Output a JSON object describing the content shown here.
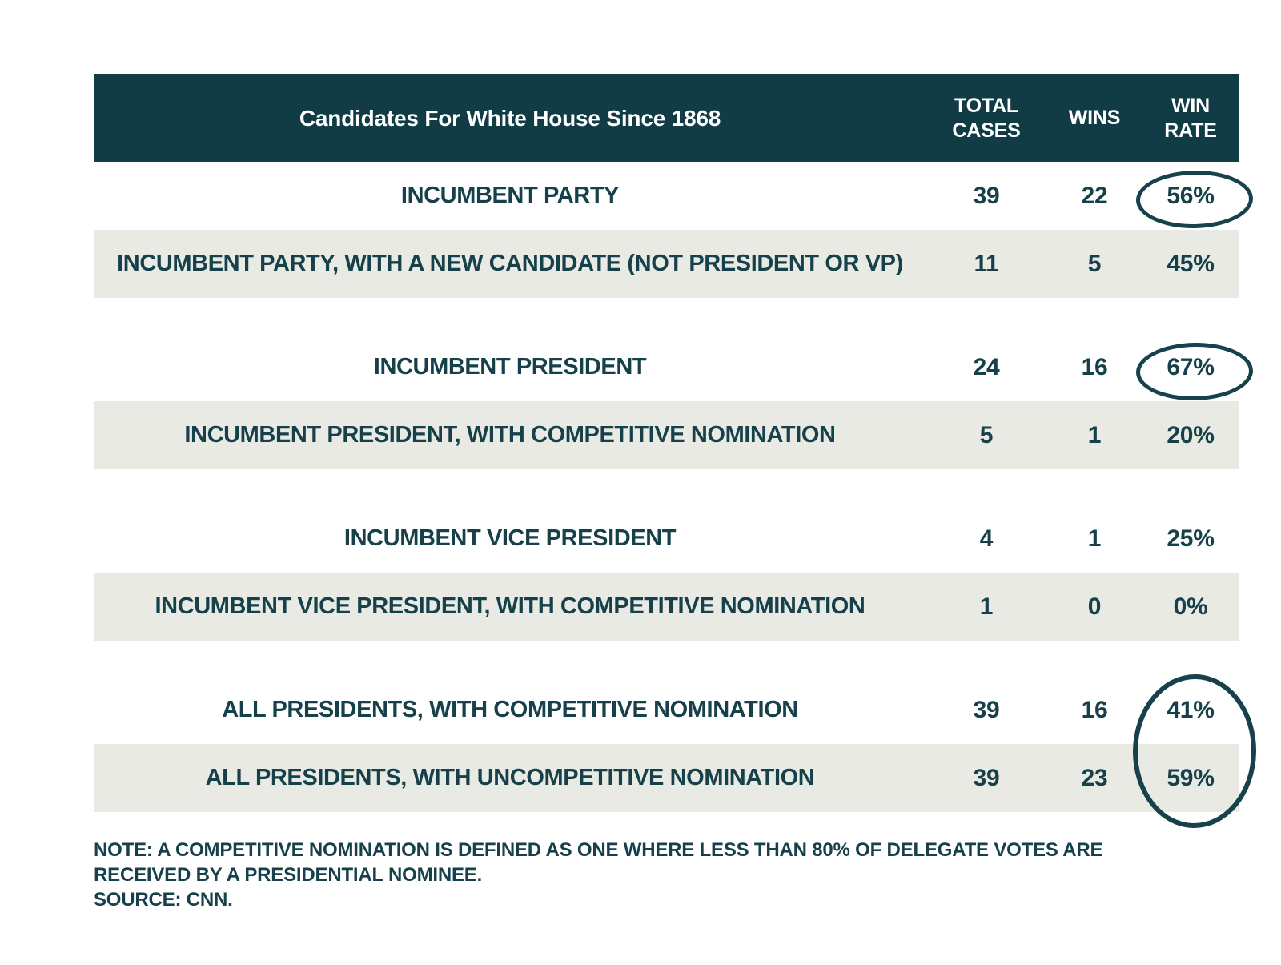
{
  "table": {
    "title": "Candidates For White House Since 1868",
    "columns": {
      "total": "TOTAL CASES",
      "wins": "WINS",
      "rate": "WIN RATE"
    },
    "rows": [
      {
        "label": "INCUMBENT PARTY",
        "total": "39",
        "wins": "22",
        "rate": "56%",
        "circled": true
      },
      {
        "label": "INCUMBENT PARTY, WITH A NEW CANDIDATE (NOT PRESIDENT OR VP)",
        "total": "11",
        "wins": "5",
        "rate": "45%",
        "circled": false
      },
      {
        "label": "INCUMBENT PRESIDENT",
        "total": "24",
        "wins": "16",
        "rate": "67%",
        "circled": true
      },
      {
        "label": "INCUMBENT PRESIDENT, WITH COMPETITIVE NOMINATION",
        "total": "5",
        "wins": "1",
        "rate": "20%",
        "circled": false
      },
      {
        "label": "INCUMBENT VICE PRESIDENT",
        "total": "4",
        "wins": "1",
        "rate": "25%",
        "circled": false
      },
      {
        "label": "INCUMBENT VICE PRESIDENT, WITH COMPETITIVE NOMINATION",
        "total": "1",
        "wins": "0",
        "rate": "0%",
        "circled": false
      },
      {
        "label": "ALL PRESIDENTS, WITH COMPETITIVE NOMINATION",
        "total": "39",
        "wins": "16",
        "rate": "41%",
        "circled": true
      },
      {
        "label": "ALL PRESIDENTS, WITH UNCOMPETITIVE NOMINATION",
        "total": "39",
        "wins": "23",
        "rate": "59%",
        "circled": true
      }
    ]
  },
  "notes": {
    "note": "NOTE: A COMPETITIVE NOMINATION IS DEFINED AS ONE WHERE LESS THAN 80% OF DELEGATE VOTES ARE RECEIVED BY A PRESIDENTIAL NOMINEE.",
    "source": "SOURCE: CNN."
  },
  "colors": {
    "header_background": "#113c45",
    "text_dark_teal": "#16404a",
    "striped_row": "#e9eae4",
    "circle_stroke": "#17414b",
    "header_text": "#ffffff"
  },
  "chart_data": {
    "type": "table",
    "title": "Candidates For White House Since 1868",
    "columns": [
      "Candidates For White House Since 1868",
      "TOTAL CASES",
      "WINS",
      "WIN RATE"
    ],
    "rows": [
      [
        "INCUMBENT PARTY",
        39,
        22,
        "56%"
      ],
      [
        "INCUMBENT PARTY, WITH A NEW CANDIDATE (NOT PRESIDENT OR VP)",
        11,
        5,
        "45%"
      ],
      [
        "INCUMBENT PRESIDENT",
        24,
        16,
        "67%"
      ],
      [
        "INCUMBENT PRESIDENT, WITH COMPETITIVE NOMINATION",
        5,
        1,
        "20%"
      ],
      [
        "INCUMBENT VICE PRESIDENT",
        4,
        1,
        "25%"
      ],
      [
        "INCUMBENT VICE PRESIDENT, WITH COMPETITIVE NOMINATION",
        1,
        0,
        "0%"
      ],
      [
        "ALL PRESIDENTS, WITH COMPETITIVE NOMINATION",
        39,
        16,
        "41%"
      ],
      [
        "ALL PRESIDENTS, WITH UNCOMPETITIVE NOMINATION",
        39,
        23,
        "59%"
      ]
    ],
    "annotations": [
      "56% circled",
      "67% circled",
      "41% and 59% jointly circled"
    ],
    "layout": "zebra striping on second row of each pair; rows grouped in pairs with white gaps",
    "note": "NOTE: A COMPETITIVE NOMINATION IS DEFINED AS ONE WHERE LESS THAN 80% OF DELEGATE VOTES ARE RECEIVED BY A PRESIDENTIAL NOMINEE.",
    "source": "SOURCE: CNN."
  }
}
